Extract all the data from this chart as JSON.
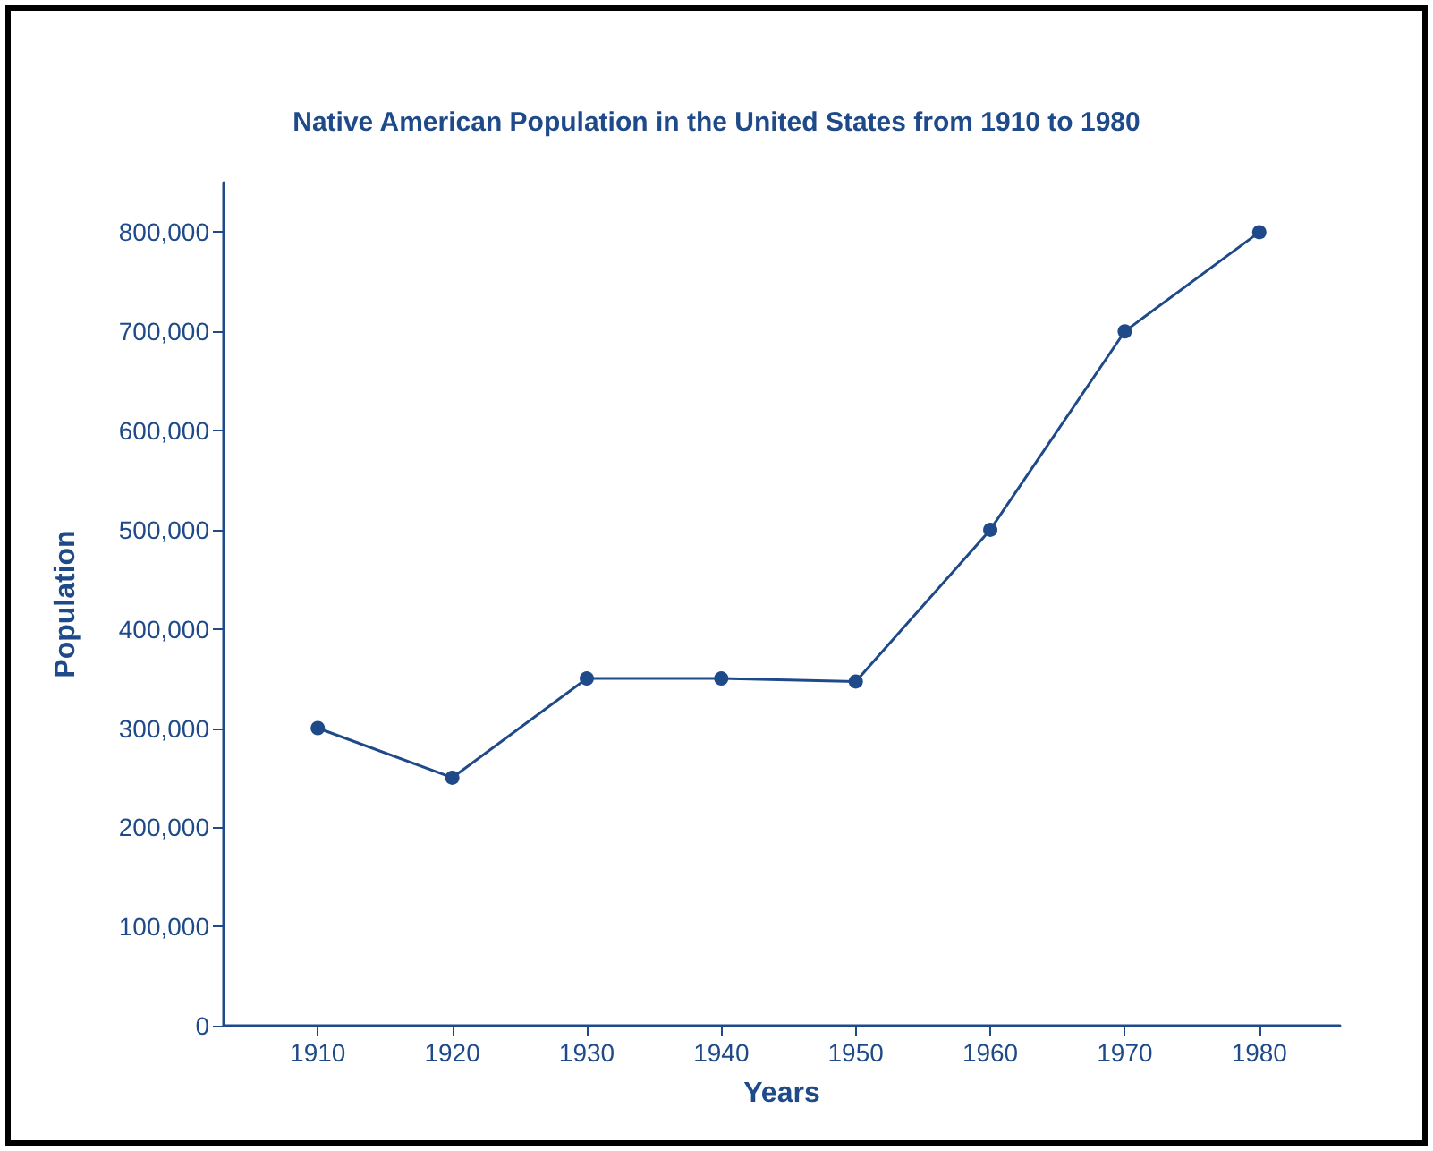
{
  "chart_data": {
    "type": "line",
    "title": "Native American Population in the United States from 1910 to 1980",
    "xlabel": "Years",
    "ylabel": "Population",
    "x": [
      1910,
      1920,
      1930,
      1940,
      1950,
      1960,
      1970,
      1980
    ],
    "series": [
      {
        "color": "#1f4a8a",
        "values": [
          300000,
          250000,
          350000,
          350000,
          347000,
          500000,
          700000,
          800000
        ]
      }
    ],
    "xlim": [
      1903,
      1986
    ],
    "xticks": [
      1910,
      1920,
      1930,
      1940,
      1950,
      1960,
      1970,
      1980
    ],
    "ylim": [
      0,
      850000
    ],
    "yticks": [
      0,
      {
        "value": 100000,
        "label": "100,000"
      },
      {
        "value": 200000,
        "label": "200,000"
      },
      {
        "value": 300000,
        "label": "300,000"
      },
      {
        "value": 400000,
        "label": "400,000"
      },
      {
        "value": 500000,
        "label": "500,000"
      },
      {
        "value": 600000,
        "label": "600,000"
      },
      {
        "value": 700000,
        "label": "700,000"
      },
      {
        "value": 800000,
        "label": "800,000"
      }
    ],
    "grid": false,
    "marker": "circle",
    "line_style": "solid"
  }
}
